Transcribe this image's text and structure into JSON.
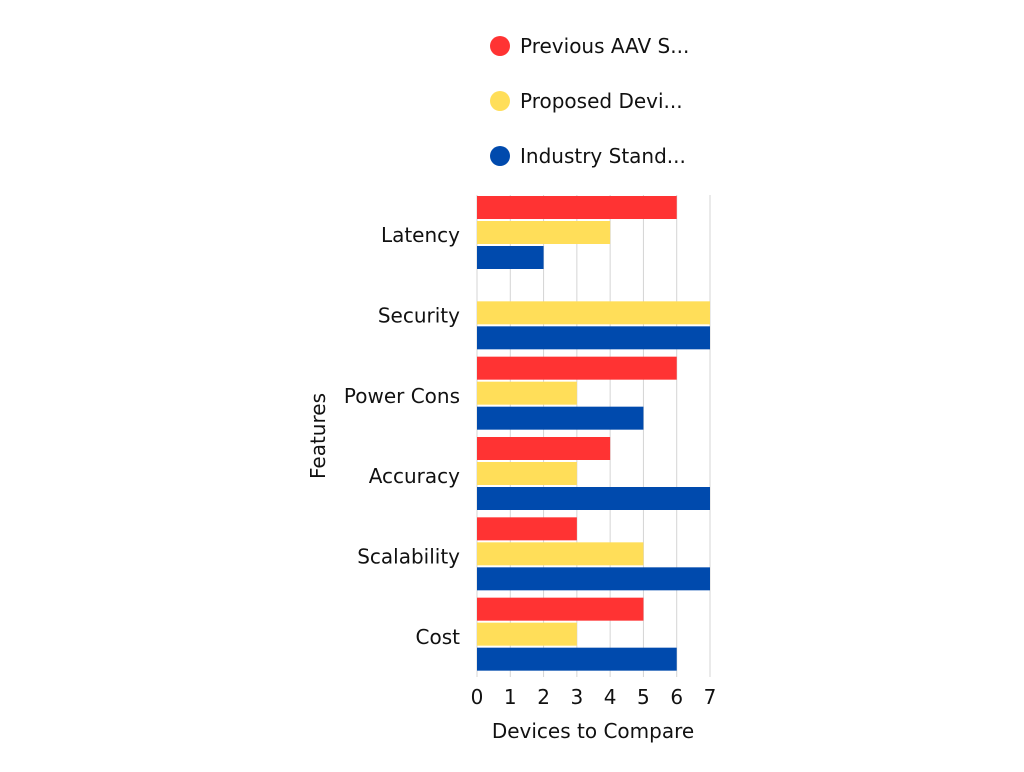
{
  "chart_data": {
    "type": "bar",
    "orientation": "horizontal",
    "categories": [
      "Latency",
      "Security",
      "Power Cons",
      "Accuracy",
      "Scalability",
      "Cost"
    ],
    "series": [
      {
        "name": "Previous AAV S...",
        "color": "#FF3333",
        "values": [
          6,
          0,
          6,
          4,
          3,
          5
        ]
      },
      {
        "name": "Proposed Devi...",
        "color": "#FFDE59",
        "values": [
          4,
          7,
          3,
          3,
          5,
          3
        ]
      },
      {
        "name": "Industry Stand...",
        "color": "#004AAD",
        "values": [
          2,
          7,
          5,
          7,
          7,
          6
        ]
      }
    ],
    "xlabel": "Devices to Compare",
    "ylabel": "Features",
    "xlim": [
      0,
      7
    ],
    "xticks": [
      "0",
      "1",
      "2",
      "3",
      "4",
      "5",
      "6",
      "7"
    ],
    "grid": "vertical",
    "legend_position": "top"
  }
}
